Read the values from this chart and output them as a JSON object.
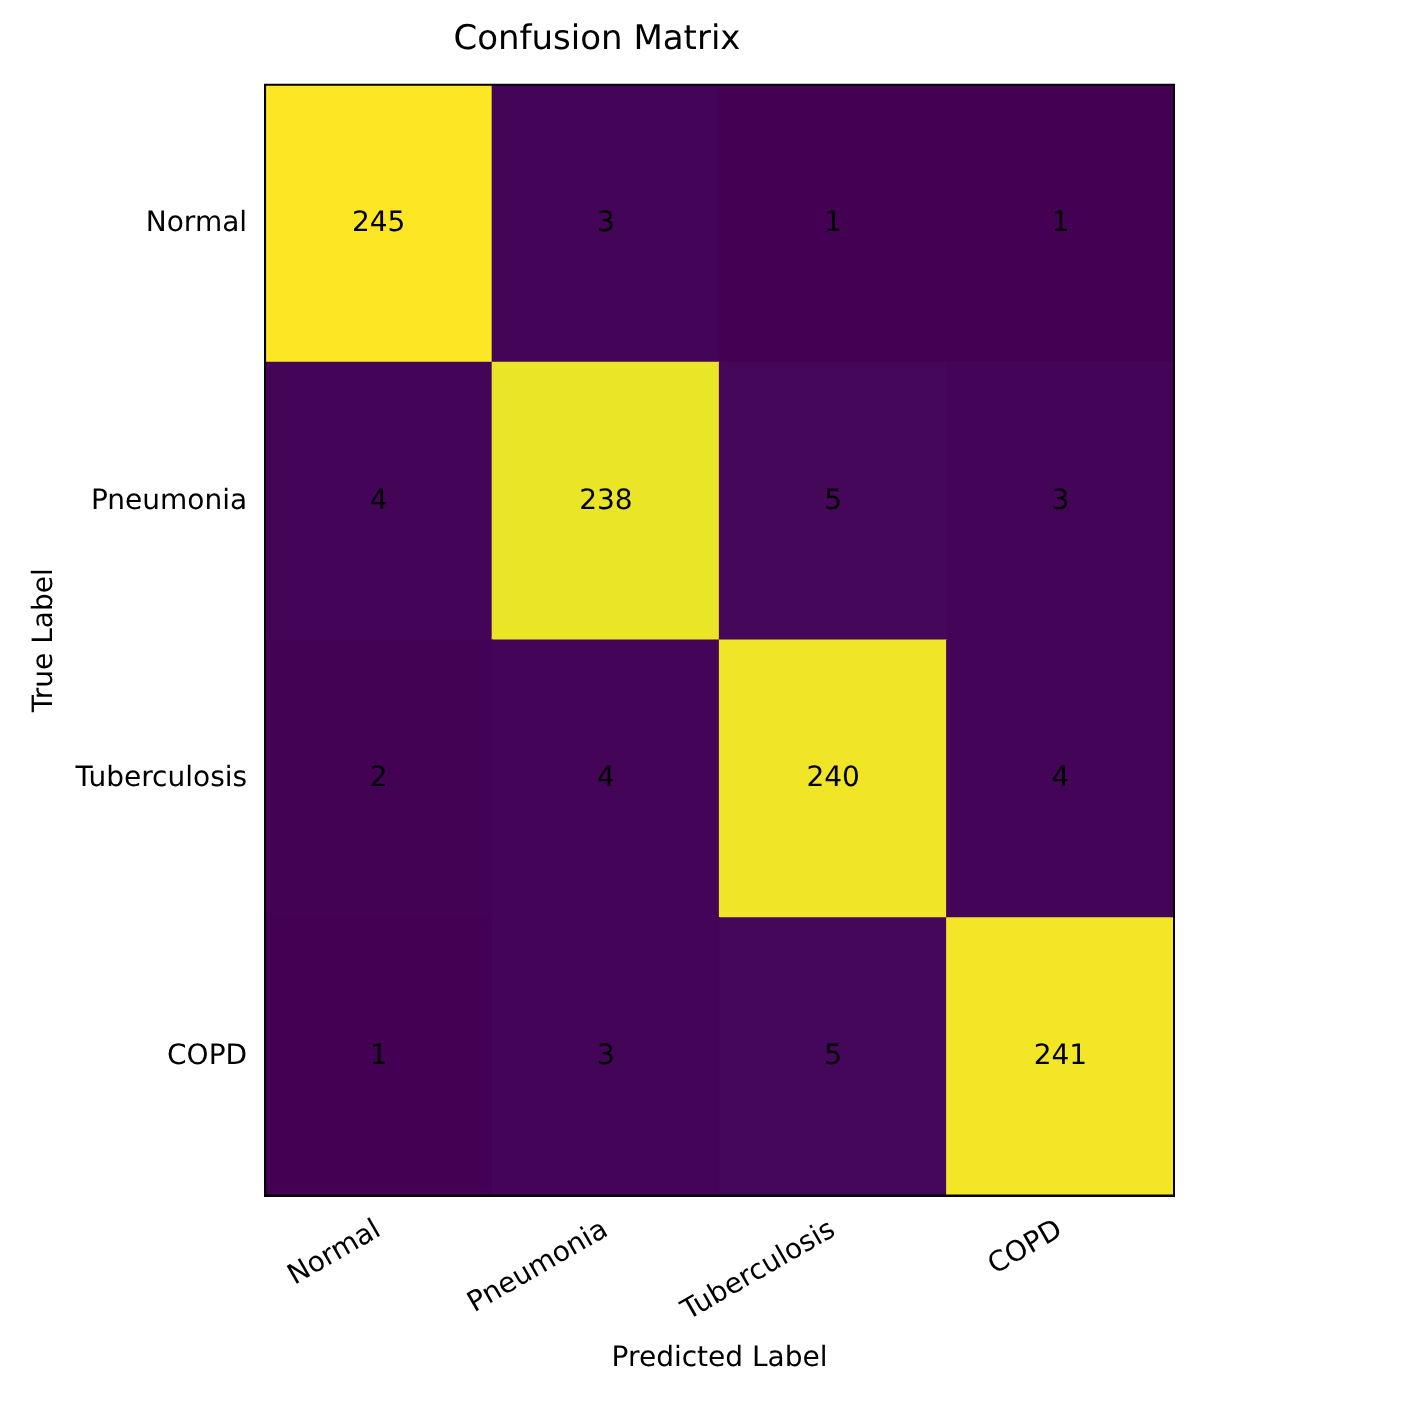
{
  "chart_data": {
    "type": "heatmap",
    "title": "Confusion Matrix",
    "xlabel": "Predicted Label",
    "ylabel": "True Label",
    "categories": [
      "Normal",
      "Pneumonia",
      "Tuberculosis",
      "COPD"
    ],
    "y_categories": [
      "Normal",
      "Pneumonia",
      "Tuberculosis",
      "COPD"
    ],
    "cells": [
      [
        245,
        3,
        1,
        1
      ],
      [
        4,
        238,
        5,
        3
      ],
      [
        2,
        4,
        240,
        4
      ],
      [
        1,
        3,
        5,
        241
      ]
    ],
    "data_labels": true
  }
}
